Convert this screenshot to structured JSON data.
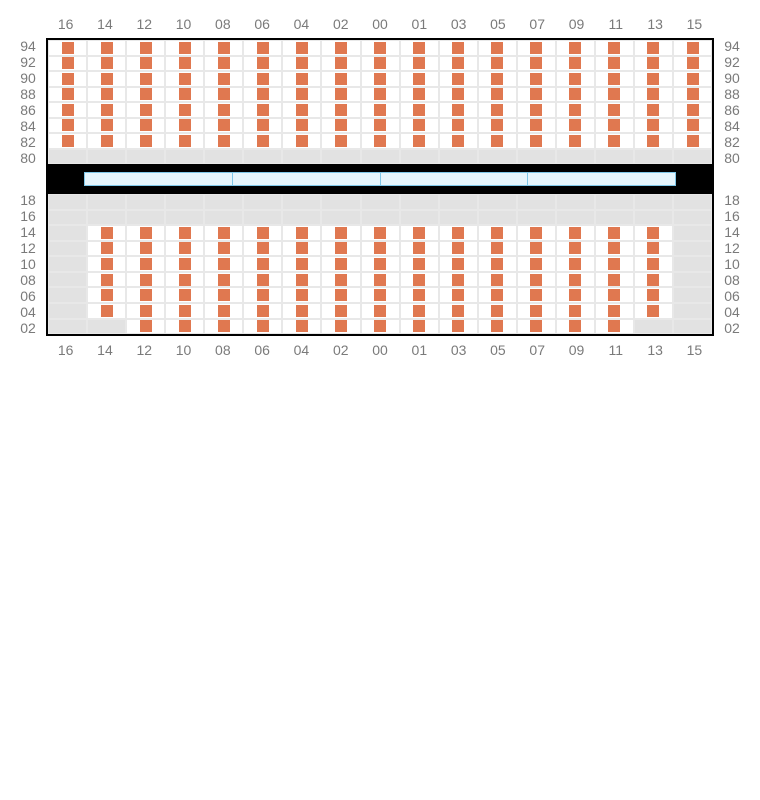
{
  "layout": {
    "background": "#ffffff",
    "border_color": "#000000",
    "cell_border": "#e8e8e8",
    "empty_fill": "#e2e2e2",
    "seat_color": "#e07850",
    "seat_size": 12,
    "label_color": "#7a7a7a",
    "label_fontsize": 14,
    "divider_bg": "#e6f5fc",
    "divider_border": "#7fc7e8",
    "divider_segments": 4
  },
  "columns": [
    "16",
    "14",
    "12",
    "10",
    "08",
    "06",
    "04",
    "02",
    "00",
    "01",
    "03",
    "05",
    "07",
    "09",
    "11",
    "13",
    "15"
  ],
  "top": {
    "rows": [
      "94",
      "92",
      "90",
      "88",
      "86",
      "84",
      "82",
      "80"
    ],
    "grid": [
      [
        1,
        1,
        1,
        1,
        1,
        1,
        1,
        1,
        1,
        1,
        1,
        1,
        1,
        1,
        1,
        1,
        1
      ],
      [
        1,
        1,
        1,
        1,
        1,
        1,
        1,
        1,
        1,
        1,
        1,
        1,
        1,
        1,
        1,
        1,
        1
      ],
      [
        1,
        1,
        1,
        1,
        1,
        1,
        1,
        1,
        1,
        1,
        1,
        1,
        1,
        1,
        1,
        1,
        1
      ],
      [
        1,
        1,
        1,
        1,
        1,
        1,
        1,
        1,
        1,
        1,
        1,
        1,
        1,
        1,
        1,
        1,
        1
      ],
      [
        1,
        1,
        1,
        1,
        1,
        1,
        1,
        1,
        1,
        1,
        1,
        1,
        1,
        1,
        1,
        1,
        1
      ],
      [
        1,
        1,
        1,
        1,
        1,
        1,
        1,
        1,
        1,
        1,
        1,
        1,
        1,
        1,
        1,
        1,
        1
      ],
      [
        1,
        1,
        1,
        1,
        1,
        1,
        1,
        1,
        1,
        1,
        1,
        1,
        1,
        1,
        1,
        1,
        1
      ],
      [
        0,
        0,
        0,
        0,
        0,
        0,
        0,
        0,
        0,
        0,
        0,
        0,
        0,
        0,
        0,
        0,
        0
      ]
    ]
  },
  "bottom": {
    "rows": [
      "18",
      "16",
      "14",
      "12",
      "10",
      "08",
      "06",
      "04",
      "02"
    ],
    "grid": [
      [
        0,
        0,
        0,
        0,
        0,
        0,
        0,
        0,
        0,
        0,
        0,
        0,
        0,
        0,
        0,
        0,
        0
      ],
      [
        0,
        0,
        0,
        0,
        0,
        0,
        0,
        0,
        0,
        0,
        0,
        0,
        0,
        0,
        0,
        0,
        0
      ],
      [
        0,
        1,
        1,
        1,
        1,
        1,
        1,
        1,
        1,
        1,
        1,
        1,
        1,
        1,
        1,
        1,
        0
      ],
      [
        0,
        1,
        1,
        1,
        1,
        1,
        1,
        1,
        1,
        1,
        1,
        1,
        1,
        1,
        1,
        1,
        0
      ],
      [
        0,
        1,
        1,
        1,
        1,
        1,
        1,
        1,
        1,
        1,
        1,
        1,
        1,
        1,
        1,
        1,
        0
      ],
      [
        0,
        1,
        1,
        1,
        1,
        1,
        1,
        1,
        1,
        1,
        1,
        1,
        1,
        1,
        1,
        1,
        0
      ],
      [
        0,
        1,
        1,
        1,
        1,
        1,
        1,
        1,
        1,
        1,
        1,
        1,
        1,
        1,
        1,
        1,
        0
      ],
      [
        0,
        1,
        1,
        1,
        1,
        1,
        1,
        1,
        1,
        1,
        1,
        1,
        1,
        1,
        1,
        1,
        0
      ],
      [
        0,
        0,
        1,
        1,
        1,
        1,
        1,
        1,
        1,
        1,
        1,
        1,
        1,
        1,
        1,
        0,
        0
      ]
    ],
    "white_override": [
      [],
      [],
      [],
      [],
      [],
      [],
      [],
      [
        1,
        15
      ],
      []
    ]
  }
}
